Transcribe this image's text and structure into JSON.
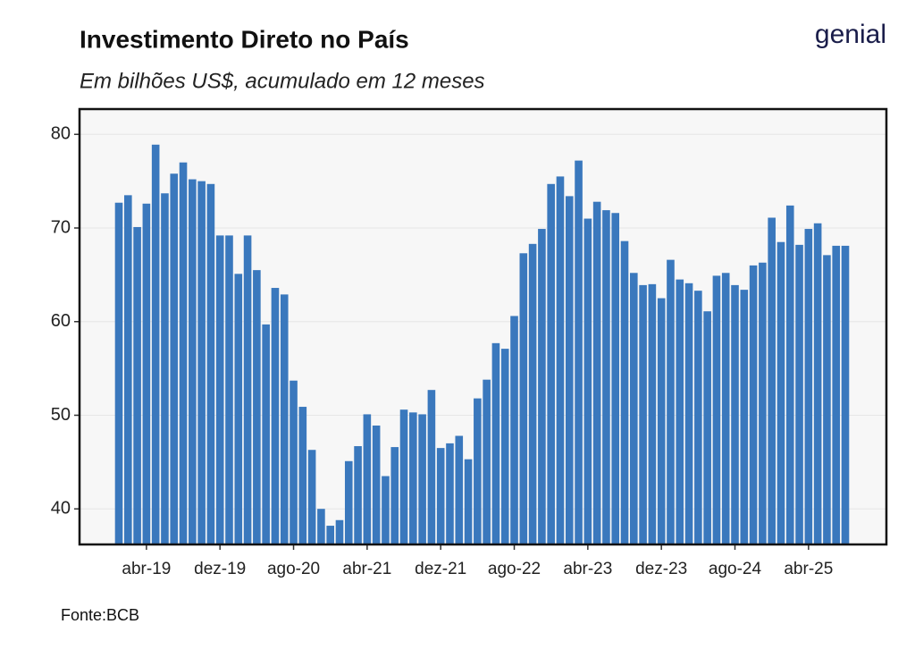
{
  "chart_data": {
    "type": "bar",
    "title": "Investimento Direto no País",
    "subtitle": "Em bilhões US$, acumulado em 12 meses",
    "source": "Fonte:BCB",
    "logo": "genial",
    "color": "#3a78bd",
    "categories": [
      null,
      null,
      null,
      "abr-19",
      null,
      null,
      null,
      null,
      null,
      null,
      null,
      "dez-19",
      null,
      null,
      null,
      null,
      null,
      null,
      null,
      "ago-20",
      null,
      null,
      null,
      null,
      null,
      null,
      null,
      "abr-21",
      null,
      null,
      null,
      null,
      null,
      null,
      null,
      "dez-21",
      null,
      null,
      null,
      null,
      null,
      null,
      null,
      "ago-22",
      null,
      null,
      null,
      null,
      null,
      null,
      null,
      "abr-23",
      null,
      null,
      null,
      null,
      null,
      null,
      null,
      "dez-23",
      null,
      null,
      null,
      null,
      null,
      null,
      null,
      "ago-24",
      null,
      null,
      null,
      null,
      null,
      null,
      null,
      "abr-25",
      null,
      null,
      null,
      null
    ],
    "values": [
      72.7,
      73.5,
      70.1,
      72.6,
      78.9,
      73.7,
      75.8,
      77.0,
      75.2,
      75.0,
      74.7,
      69.2,
      69.2,
      65.1,
      69.2,
      65.5,
      59.7,
      63.6,
      62.9,
      53.7,
      50.9,
      46.3,
      40.0,
      38.2,
      38.8,
      45.1,
      46.7,
      50.1,
      48.9,
      43.5,
      46.6,
      50.6,
      50.3,
      50.1,
      52.7,
      46.5,
      47.0,
      47.8,
      45.3,
      51.8,
      53.8,
      57.7,
      57.1,
      60.6,
      67.3,
      68.3,
      69.9,
      74.7,
      75.5,
      73.4,
      77.2,
      71.0,
      72.8,
      71.9,
      71.6,
      68.6,
      65.2,
      63.9,
      64.0,
      62.5,
      66.6,
      64.5,
      64.1,
      63.3,
      61.1,
      64.9,
      65.2,
      63.9,
      63.4,
      66.0,
      66.3,
      71.1,
      68.5,
      72.4,
      68.2,
      69.9,
      70.5,
      67.1,
      68.1,
      68.1
    ],
    "ylim": [
      36.2,
      82.7
    ],
    "yticks": [
      40,
      50,
      60,
      70,
      80
    ],
    "grid": true
  }
}
